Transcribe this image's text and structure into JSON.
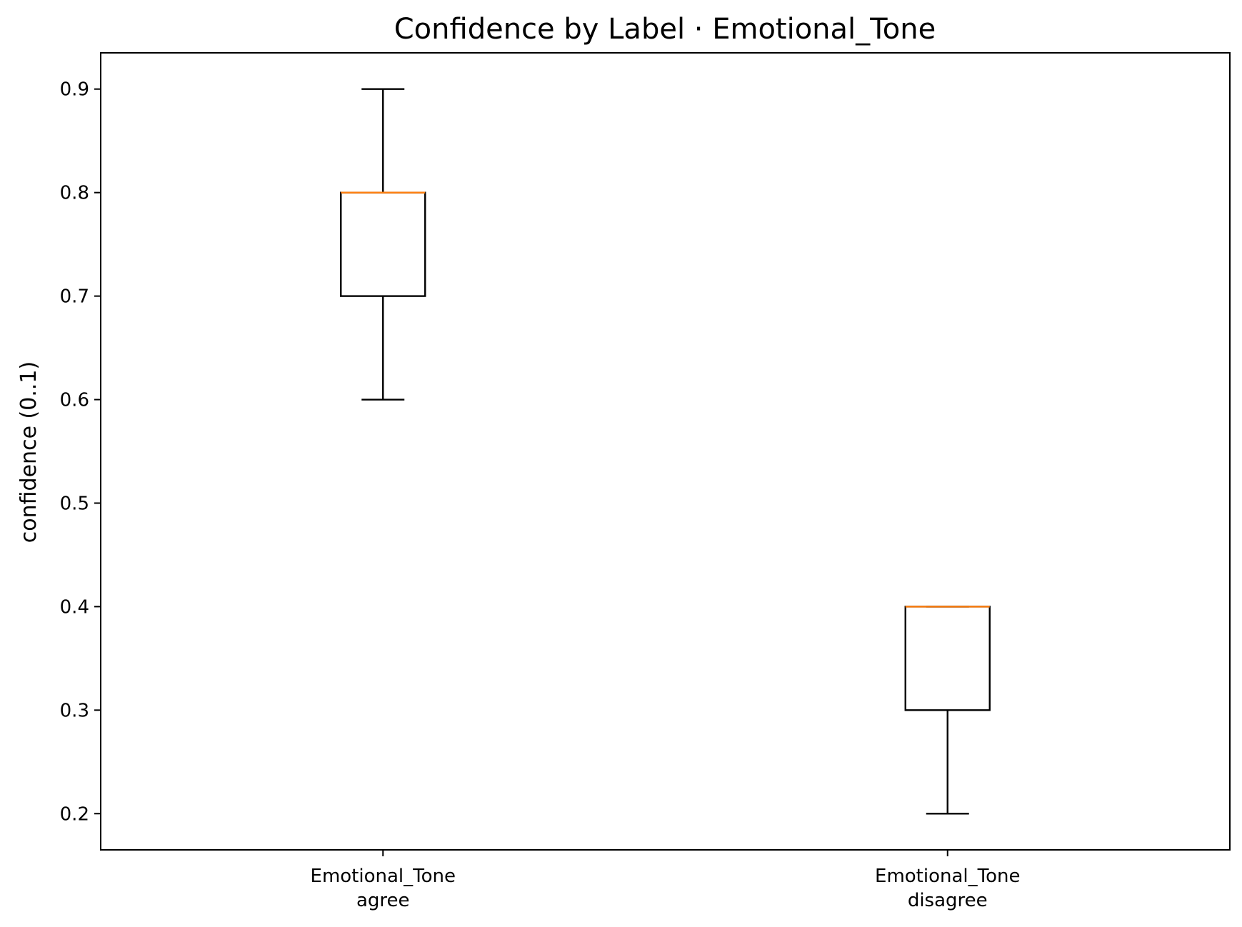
{
  "chart_data": {
    "type": "box",
    "title": "Confidence by Label · Emotional_Tone",
    "xlabel": "",
    "ylabel": "confidence (0..1)",
    "ylim": [
      0.165,
      0.935
    ],
    "yticks": [
      0.2,
      0.3,
      0.4,
      0.5,
      0.6,
      0.7,
      0.8,
      0.9
    ],
    "ytick_labels": [
      "0.2",
      "0.3",
      "0.4",
      "0.5",
      "0.6",
      "0.7",
      "0.8",
      "0.9"
    ],
    "grid": false,
    "categories": [
      [
        "Emotional_Tone",
        "agree"
      ],
      [
        "Emotional_Tone",
        "disagree"
      ]
    ],
    "boxes": [
      {
        "whisker_low": 0.6,
        "q1": 0.7,
        "median": 0.8,
        "q3": 0.8,
        "whisker_high": 0.9
      },
      {
        "whisker_low": 0.2,
        "q1": 0.3,
        "median": 0.4,
        "q3": 0.4,
        "whisker_high": 0.4
      }
    ],
    "colors": {
      "box": "#000000",
      "median": "#ff7f0e"
    }
  }
}
